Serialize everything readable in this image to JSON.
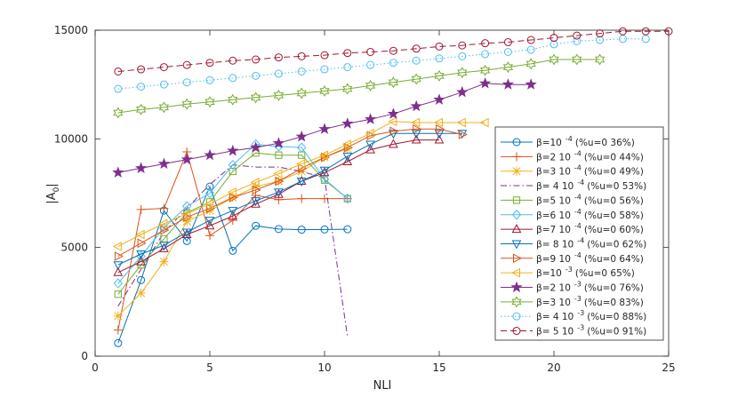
{
  "chart_data": {
    "type": "line",
    "title": "",
    "xlabel": "NLI",
    "ylabel": "|A 0|",
    "ylabel_main": "|A",
    "ylabel_sub": "0",
    "ylabel_end": "|",
    "xlim": [
      0,
      25
    ],
    "ylim": [
      0,
      15000
    ],
    "xticks": [
      0,
      5,
      10,
      15,
      20,
      25
    ],
    "yticks": [
      0,
      5000,
      10000,
      15000
    ],
    "grid": false,
    "legend_position": "right",
    "series": [
      {
        "name": "β=10 -4 (%u=0 36%)",
        "legend": {
          "beta": "β",
          "coef": "=10",
          "exp": "-4",
          "rest": "(%u=0 36%)"
        },
        "color": "#0072BD",
        "marker": "circle",
        "dash": "solid",
        "x": [
          1,
          2,
          3,
          4,
          5,
          6,
          7,
          8,
          9,
          10,
          11
        ],
        "y": [
          600,
          3500,
          6700,
          5300,
          7800,
          4850,
          6000,
          5850,
          5820,
          5830,
          5840
        ]
      },
      {
        "name": "β=2 10 -4 (%u=0 44%)",
        "legend": {
          "beta": "β",
          "coef": "=2 10",
          "exp": "-4",
          "rest": "(%u=0 44%)"
        },
        "color": "#D95319",
        "marker": "plus",
        "dash": "solid",
        "x": [
          1,
          2,
          3,
          4,
          5,
          6,
          7,
          8,
          9,
          10,
          11
        ],
        "y": [
          1200,
          6750,
          6800,
          9400,
          5550,
          6250,
          7400,
          7200,
          7250,
          7250,
          7250
        ]
      },
      {
        "name": "β=3 10 -4 (%u=0 49%)",
        "legend": {
          "beta": "β",
          "coef": "=3 10",
          "exp": "-4",
          "rest": "(%u=0 49%)"
        },
        "color": "#EDB120",
        "marker": "asterisk",
        "dash": "solid",
        "x": [
          1,
          2,
          3,
          4,
          5,
          6,
          7,
          8,
          9,
          10,
          11
        ],
        "y": [
          1850,
          2900,
          4350,
          6200,
          6700,
          7300,
          7800,
          8050,
          8500,
          9150,
          9550
        ]
      },
      {
        "name": "β= 4 10 -4 (%u=0 53%)",
        "legend": {
          "beta": "β",
          "coef": "= 4 10",
          "exp": "-4",
          "rest": "(%u=0 53%)"
        },
        "color": "#7E2F8E",
        "marker": "none",
        "dash": "dashdot",
        "x": [
          1,
          2,
          3,
          4,
          5,
          6,
          7,
          8,
          9,
          10,
          11
        ],
        "y": [
          2300,
          4000,
          5700,
          6800,
          7900,
          8800,
          8700,
          8700,
          8500,
          8200,
          900
        ]
      },
      {
        "name": "β=5 10 -4 (%u=0 56%)",
        "legend": {
          "beta": "β",
          "coef": "=5 10",
          "exp": "-4",
          "rest": "(%u=0 56%)"
        },
        "color": "#77AC30",
        "marker": "square",
        "dash": "solid",
        "x": [
          1,
          2,
          3,
          4,
          5,
          6,
          7,
          8,
          9,
          10,
          11
        ],
        "y": [
          2850,
          4200,
          5400,
          6600,
          7100,
          8500,
          9350,
          9250,
          9250,
          8100,
          7250
        ]
      },
      {
        "name": "β=6 10 -4 (%u=0 58%)",
        "legend": {
          "beta": "β",
          "coef": "=6 10",
          "exp": "-4",
          "rest": "(%u=0 58%)"
        },
        "color": "#4DBEEE",
        "marker": "diamond",
        "dash": "solid",
        "x": [
          1,
          2,
          3,
          4,
          5,
          6,
          7,
          8,
          9,
          10,
          11
        ],
        "y": [
          3350,
          4600,
          5900,
          6900,
          7500,
          8800,
          9750,
          9650,
          9600,
          8150,
          7250
        ]
      },
      {
        "name": "β=7 10 -4 (%u=0 60%)",
        "legend": {
          "beta": "β",
          "coef": "=7 10",
          "exp": "-4",
          "rest": "(%u=0 60%)"
        },
        "color": "#A2142F",
        "marker": "triangle-up",
        "dash": "solid",
        "x": [
          1,
          2,
          3,
          4,
          5,
          6,
          7,
          8,
          9,
          10,
          11,
          12,
          13,
          14,
          15
        ],
        "y": [
          3850,
          4350,
          4950,
          5600,
          6000,
          6450,
          7000,
          7450,
          8050,
          8450,
          8950,
          9500,
          9750,
          9950,
          9950
        ]
      },
      {
        "name": "β= 8 10 -4 (%u=0 62%)",
        "legend": {
          "beta": "β",
          "coef": "= 8 10",
          "exp": "-4",
          "rest": "(%u=0  62%)"
        },
        "color": "#0072BD",
        "marker": "triangle-down",
        "dash": "solid",
        "x": [
          1,
          2,
          3,
          4,
          5,
          6,
          7,
          8,
          9,
          10,
          11,
          12,
          13,
          14,
          15,
          16
        ],
        "y": [
          4200,
          4700,
          5100,
          5700,
          6250,
          6700,
          7150,
          7550,
          8050,
          8550,
          9200,
          9750,
          10250,
          10250,
          10250,
          10250
        ]
      },
      {
        "name": "β=9 10 -4 (%u=0 64%)",
        "legend": {
          "beta": "β",
          "coef": "=9 10",
          "exp": "-4",
          "rest": "(%u=0 64%)"
        },
        "color": "#D95319",
        "marker": "triangle-right",
        "dash": "solid",
        "x": [
          1,
          2,
          3,
          4,
          5,
          6,
          7,
          8,
          9,
          10,
          11,
          12,
          13,
          14,
          15,
          16
        ],
        "y": [
          4600,
          5200,
          5800,
          6400,
          6800,
          7300,
          7650,
          8050,
          8650,
          9150,
          9600,
          10150,
          10350,
          10450,
          10450,
          10200
        ]
      },
      {
        "name": "β=10 -3 (%u=0 65%)",
        "legend": {
          "beta": "β",
          "coef": "=10",
          "exp": "-3",
          "rest": "(%u=0 65%)"
        },
        "color": "#EDB120",
        "marker": "triangle-left",
        "dash": "solid",
        "x": [
          1,
          2,
          3,
          4,
          5,
          6,
          7,
          8,
          9,
          10,
          11,
          12,
          13,
          14,
          15,
          16,
          17
        ],
        "y": [
          5050,
          5600,
          6100,
          6550,
          7000,
          7550,
          8000,
          8400,
          8850,
          9250,
          9750,
          10250,
          10800,
          10750,
          10750,
          10750,
          10750
        ]
      },
      {
        "name": "β=2 10 -3 (%u=0 76%)",
        "legend": {
          "beta": "β",
          "coef": "=2 10",
          "exp": "-3",
          "rest": "(%u=0  76%)"
        },
        "color": "#7E2F8E",
        "marker": "star",
        "dash": "solid",
        "x": [
          1,
          2,
          3,
          4,
          5,
          6,
          7,
          8,
          9,
          10,
          11,
          12,
          13,
          14,
          15,
          16,
          17,
          18,
          19
        ],
        "y": [
          8450,
          8650,
          8850,
          9050,
          9250,
          9450,
          9600,
          9800,
          10100,
          10450,
          10700,
          10900,
          11150,
          11500,
          11800,
          12150,
          12550,
          12500,
          12500
        ]
      },
      {
        "name": "β=3 10 -3 (%u=0 83%)",
        "legend": {
          "beta": "β",
          "coef": "=3 10",
          "exp": "-3",
          "rest": "(%u=0  83%)"
        },
        "color": "#77AC30",
        "marker": "hexagram",
        "dash": "solid",
        "x": [
          1,
          2,
          3,
          4,
          5,
          6,
          7,
          8,
          9,
          10,
          11,
          12,
          13,
          14,
          15,
          16,
          17,
          18,
          19,
          20,
          21,
          22
        ],
        "y": [
          11200,
          11350,
          11450,
          11600,
          11700,
          11800,
          11900,
          12000,
          12100,
          12200,
          12300,
          12450,
          12600,
          12750,
          12900,
          13050,
          13150,
          13300,
          13450,
          13650,
          13650,
          13650
        ]
      },
      {
        "name": "β= 4 10 -3 (%u=0 88%)",
        "legend": {
          "beta": "β",
          "coef": "= 4 10",
          "exp": "-3",
          "rest": "(%u=0 88%)"
        },
        "color": "#4DBEEE",
        "marker": "circle",
        "dash": "dotted",
        "x": [
          1,
          2,
          3,
          4,
          5,
          6,
          7,
          8,
          9,
          10,
          11,
          12,
          13,
          14,
          15,
          16,
          17,
          18,
          19,
          20,
          21,
          22,
          23,
          24
        ],
        "y": [
          12300,
          12400,
          12500,
          12600,
          12700,
          12800,
          12900,
          13000,
          13100,
          13200,
          13300,
          13400,
          13500,
          13600,
          13700,
          13800,
          13900,
          14000,
          14100,
          14350,
          14500,
          14550,
          14600,
          14600
        ]
      },
      {
        "name": "β= 5 10 -3 (%u=0 91%)",
        "legend": {
          "beta": "β",
          "coef": "= 5 10",
          "exp": "-3",
          "rest": "(%u=0 91%)"
        },
        "color": "#A2142F",
        "marker": "circle",
        "dash": "dashed",
        "x": [
          1,
          2,
          3,
          4,
          5,
          6,
          7,
          8,
          9,
          10,
          11,
          12,
          13,
          14,
          15,
          16,
          17,
          18,
          19,
          20,
          21,
          22,
          23,
          24,
          25
        ],
        "y": [
          13100,
          13200,
          13300,
          13400,
          13500,
          13600,
          13650,
          13750,
          13800,
          13850,
          13950,
          14000,
          14050,
          14150,
          14250,
          14300,
          14400,
          14450,
          14550,
          14650,
          14750,
          14850,
          14950,
          14950,
          14950
        ]
      }
    ]
  }
}
